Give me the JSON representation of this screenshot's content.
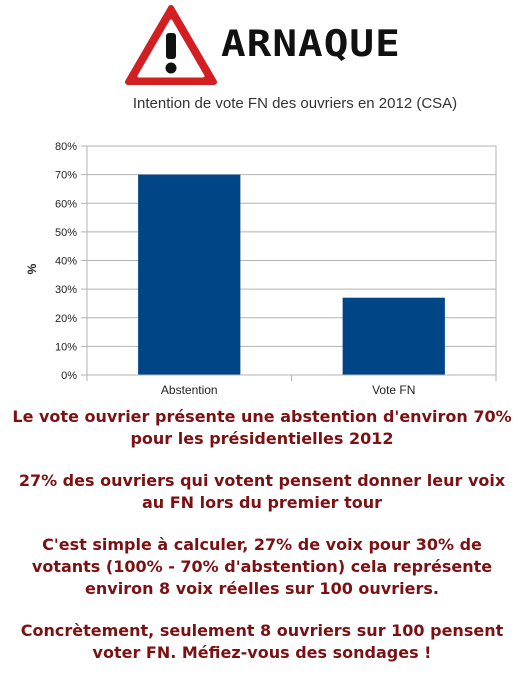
{
  "header": {
    "brand_text": "ARNAQUE",
    "icon": "warning-triangle-icon",
    "icon_color": "#d7191c"
  },
  "chart_data": {
    "type": "bar",
    "title": "Intention de vote FN des ouvriers en 2012 (CSA)",
    "xlabel": "",
    "ylabel": "%",
    "categories": [
      "Abstention",
      "Vote FN"
    ],
    "values": [
      70,
      27
    ],
    "ylim": [
      0,
      80
    ],
    "yticks": [
      0,
      10,
      20,
      30,
      40,
      50,
      60,
      70,
      80
    ],
    "ytick_labels": [
      "0%",
      "10%",
      "20%",
      "30%",
      "40%",
      "50%",
      "60%",
      "70%",
      "80%"
    ],
    "grid": true,
    "legend": "none",
    "bar_color": "#004586"
  },
  "message": {
    "paragraphs": [
      [
        "Le vote ouvrier présente une abstention d'environ 70%",
        "pour les présidentielles 2012"
      ],
      [
        "27% des ouvriers qui votent pensent donner leur voix",
        "au FN lors du premier tour"
      ],
      [
        "C'est simple à calculer, 27% de voix pour 30% de",
        "votants (100% - 70% d'abstention) cela représente",
        "environ 8 voix réelles sur 100 ouvriers."
      ],
      [
        "Concrètement, seulement 8 ouvriers sur 100 pensent",
        "voter FN. Méfiez-vous des sondages !"
      ]
    ],
    "color": "#7b1113"
  }
}
